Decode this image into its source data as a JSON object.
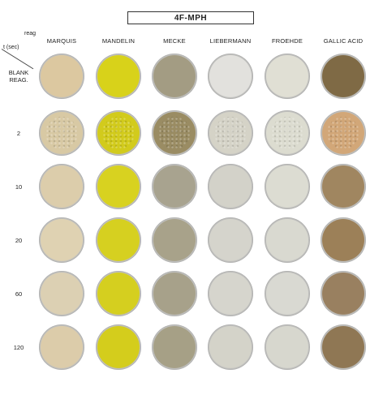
{
  "title": "4F-MPH",
  "corner": {
    "top_label": "reag",
    "bottom_label": "t (sec)"
  },
  "reagents": [
    "MARQUIS",
    "MANDELIN",
    "MECKE",
    "LIEBERMANN",
    "FROEHDE",
    "GALLIC ACID"
  ],
  "rows": [
    {
      "label": "BLANK\nREAG.",
      "colors": [
        "#dcc8a0",
        "#d8d21a",
        "#a39c83",
        "#e2e1dd",
        "#e0dfd4",
        "#7f6a45"
      ]
    },
    {
      "label": "2",
      "colors": [
        "#d8c9a4",
        "#d2cb1c",
        "#9a8c63",
        "#d5d3c7",
        "#dcdcd0",
        "#d2a778"
      ]
    },
    {
      "label": "10",
      "colors": [
        "#dccdab",
        "#d8d220",
        "#a8a38f",
        "#d3d2c9",
        "#dcdcd2",
        "#a08660"
      ]
    },
    {
      "label": "20",
      "colors": [
        "#dfd2b2",
        "#d6d020",
        "#a8a28a",
        "#d5d4cc",
        "#d9d9d0",
        "#9c8058"
      ]
    },
    {
      "label": "60",
      "colors": [
        "#dcd0b3",
        "#d5cf1f",
        "#a7a18a",
        "#d6d5cd",
        "#d9d9d2",
        "#998060"
      ]
    },
    {
      "label": "120",
      "colors": [
        "#dcccaa",
        "#d4cd1c",
        "#a6a086",
        "#d4d3c9",
        "#d7d7ce",
        "#8f7754"
      ]
    }
  ]
}
